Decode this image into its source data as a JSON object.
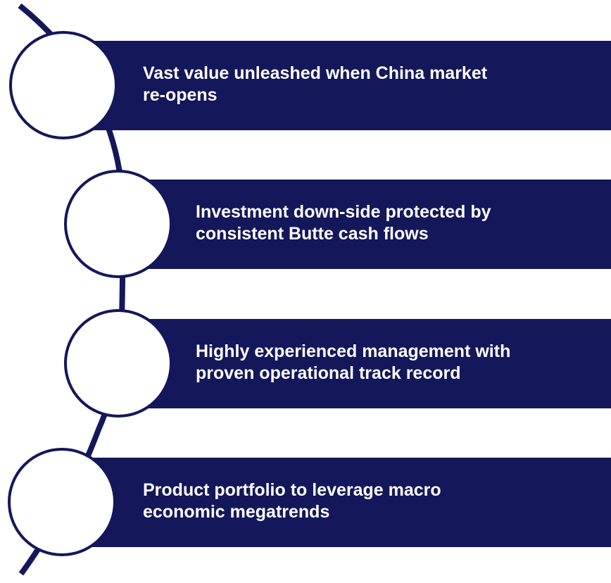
{
  "items": [
    {
      "lines": [
        "Vast value unleashed when China market",
        "re-opens"
      ]
    },
    {
      "lines": [
        "Investment down-side protected by",
        "consistent Butte cash flows"
      ]
    },
    {
      "lines": [
        "Highly experienced management with",
        "proven operational track record"
      ]
    },
    {
      "lines": [
        "Product portfolio to leverage macro",
        "economic megatrends"
      ]
    }
  ]
}
